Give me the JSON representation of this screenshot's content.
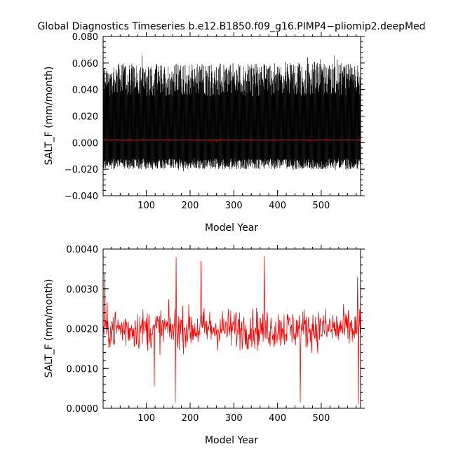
{
  "figure": {
    "title": "Global Diagnostics Timeseries b.e12.B1850.f09_g16.PIMP4−pliomip2.deepMed"
  },
  "chart_data": [
    {
      "type": "line",
      "xlabel": "Model Year",
      "ylabel": "SALT_F (mm/month)",
      "xlim": [
        1,
        590
      ],
      "ylim": [
        -0.04,
        0.08
      ],
      "x_ticks": [
        100,
        200,
        300,
        400,
        500
      ],
      "y_ticks": [
        -0.04,
        -0.02,
        0.0,
        0.02,
        0.04,
        0.06,
        0.08
      ],
      "y_tick_labels": [
        "−0.040",
        "−0.020",
        "0.000",
        "0.020",
        "0.040",
        "0.060",
        "0.080"
      ],
      "series": [
        {
          "color": "#000000",
          "resolution": "monthly",
          "typical_range": [
            -0.018,
            0.06
          ],
          "extremes": [
            -0.022,
            0.068
          ]
        },
        {
          "color": "#ff0000",
          "resolution": "annual",
          "mean": 0.002
        }
      ],
      "grid": false
    },
    {
      "type": "line",
      "xlabel": "Model Year",
      "ylabel": "SALT_F (mm/month)",
      "xlim": [
        1,
        590
      ],
      "ylim": [
        0.0,
        0.004
      ],
      "x_ticks": [
        100,
        200,
        300,
        400,
        500
      ],
      "y_ticks": [
        0.0,
        0.001,
        0.002,
        0.003,
        0.004
      ],
      "y_tick_labels": [
        "0.0000",
        "0.0010",
        "0.0020",
        "0.0030",
        "0.0040"
      ],
      "series": [
        {
          "color": "#ff0000",
          "resolution": "annual",
          "mean": 0.002,
          "extremes": [
            0.00015,
            0.0038
          ]
        }
      ],
      "grid": false
    }
  ]
}
